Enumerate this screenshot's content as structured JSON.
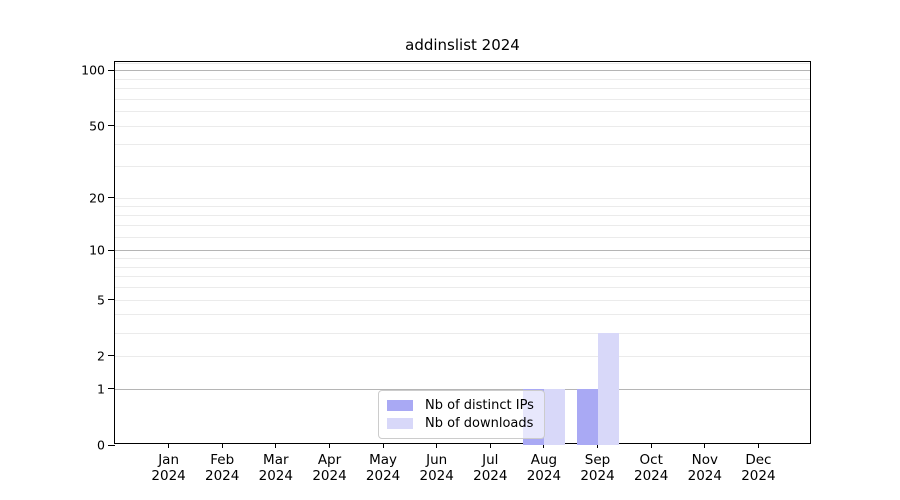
{
  "title": "addinslist 2024",
  "chart_data": {
    "type": "bar",
    "title": "addinslist 2024",
    "categories": [
      {
        "label": "Jan",
        "sub": "2024"
      },
      {
        "label": "Feb",
        "sub": "2024"
      },
      {
        "label": "Mar",
        "sub": "2024"
      },
      {
        "label": "Apr",
        "sub": "2024"
      },
      {
        "label": "May",
        "sub": "2024"
      },
      {
        "label": "Jun",
        "sub": "2024"
      },
      {
        "label": "Jul",
        "sub": "2024"
      },
      {
        "label": "Aug",
        "sub": "2024"
      },
      {
        "label": "Sep",
        "sub": "2024"
      },
      {
        "label": "Oct",
        "sub": "2024"
      },
      {
        "label": "Nov",
        "sub": "2024"
      },
      {
        "label": "Dec",
        "sub": "2024"
      }
    ],
    "series": [
      {
        "name": "Nb of distinct IPs",
        "color": "#a9a9f4",
        "values": [
          0,
          0,
          0,
          0,
          0,
          0,
          0,
          1,
          1,
          0,
          0,
          0
        ]
      },
      {
        "name": "Nb of downloads",
        "color": "#d8d8f9",
        "values": [
          0,
          0,
          0,
          0,
          0,
          0,
          0,
          1,
          3,
          0,
          0,
          0
        ]
      }
    ],
    "y_ticks": [
      0,
      1,
      2,
      5,
      10,
      20,
      50,
      100
    ],
    "grid_major": [
      1,
      10,
      100
    ],
    "grid_minor": [
      2,
      3,
      4,
      5,
      6,
      7,
      8,
      9,
      12,
      14,
      16,
      18,
      20,
      30,
      40,
      50,
      60,
      70,
      80,
      90,
      110
    ],
    "ylim": [
      0,
      110
    ],
    "y_scale": "log10(1+v)",
    "grid": "on",
    "legend_position": "lower center",
    "colors": {
      "grid_major": "#b5b5b5",
      "grid_minor": "#ebebeb",
      "spine": "#000000",
      "legend_border": "#cccccc"
    }
  }
}
